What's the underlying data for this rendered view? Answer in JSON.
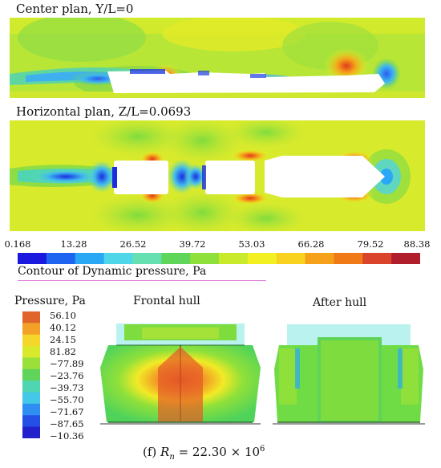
{
  "panels": {
    "center_title": "Center plan, Y/L=0",
    "horizontal_title": "Horizontal plan, Z/L=0.0693"
  },
  "colorbar": {
    "ticks": [
      "0.168",
      "13.28",
      "26.52",
      "39.72",
      "53.03",
      "66.28",
      "79.52",
      "88.38"
    ],
    "title": "Contour of Dynamic pressure, Pa",
    "colors": [
      "#1a1adf",
      "#1e64f0",
      "#2aa7f5",
      "#4fd6e8",
      "#66e0b0",
      "#5fd65a",
      "#8fe03a",
      "#c8ea2a",
      "#f2f020",
      "#f8d21e",
      "#f5a21a",
      "#ef7a16",
      "#d9442a",
      "#b01e2c"
    ]
  },
  "pressure_legend": {
    "title": "Pressure, Pa",
    "labels": [
      "56.10",
      "40.12",
      "24.15",
      "81.82",
      "−77.89",
      "−23.76",
      "−39.73",
      "−55.70",
      "−71.67",
      "−87.65",
      "−10.36"
    ],
    "colors": [
      "#e0652a",
      "#f2a126",
      "#f5d62a",
      "#d9ea2c",
      "#9be03a",
      "#5fd35a",
      "#4fd6b0",
      "#44c8e8",
      "#2f8ef2",
      "#2450e6",
      "#2222cc"
    ]
  },
  "hulls": {
    "frontal_title": "Frontal hull",
    "after_title": "After hull"
  },
  "caption": {
    "label": "(f)",
    "symbol": "R",
    "subscript": "n",
    "equals": " = 22.30 × 10",
    "exponent": "6"
  }
}
